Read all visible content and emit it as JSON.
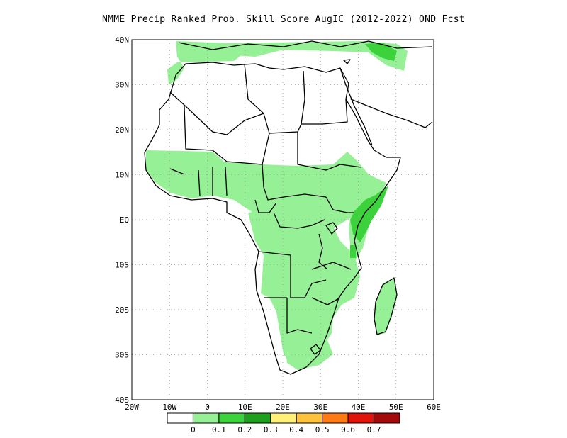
{
  "title": "NMME Precip Ranked Prob. Skill Score AugIC (2012-2022) OND Fcst",
  "map": {
    "lon_range": [
      -20,
      60
    ],
    "lat_range": [
      -40,
      40
    ],
    "lon_ticks": [
      "20W",
      "10W",
      "0",
      "10E",
      "20E",
      "30E",
      "40E",
      "50E",
      "60E"
    ],
    "lat_ticks": [
      "40N",
      "30N",
      "20N",
      "10N",
      "EQ",
      "10S",
      "20S",
      "30S",
      "40S"
    ],
    "gridlines": "dotted"
  },
  "colorbar": {
    "labels": [
      "0",
      "0.1",
      "0.2",
      "0.3",
      "0.4",
      "0.5",
      "0.6",
      "0.7"
    ],
    "colors": [
      "#ffffff",
      "#96f096",
      "#3cd23c",
      "#1ea01e",
      "#fff07a",
      "#ffc23c",
      "#ff7a14",
      "#e0140a",
      "#a50a0a"
    ]
  }
}
